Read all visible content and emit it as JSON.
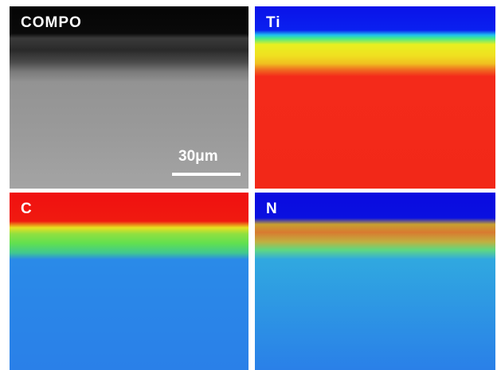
{
  "panels": [
    {
      "label": "COMPO"
    },
    {
      "label": "Ti"
    },
    {
      "label": "C"
    },
    {
      "label": "N"
    }
  ],
  "scale_bar": {
    "label": "30μm"
  }
}
